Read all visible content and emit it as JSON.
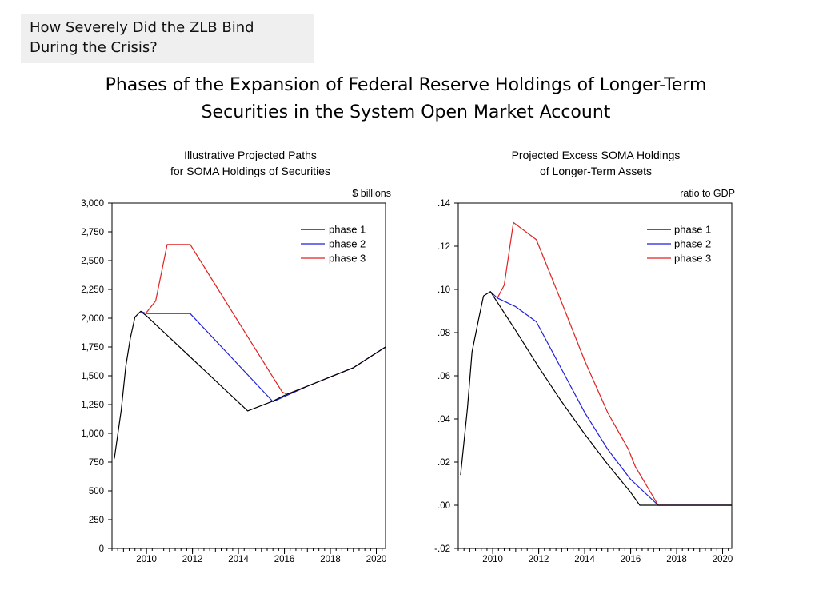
{
  "header": {
    "section_line1": "How Severely Did the ZLB Bind",
    "section_line2": "During the Crisis?"
  },
  "slide": {
    "title_line1": "Phases of the Expansion of Federal Reserve Holdings of Longer-Term",
    "title_line2": "Securities in the System Open Market Account"
  },
  "chart_data": [
    {
      "type": "line",
      "title_lines": [
        "Illustrative Projected Paths",
        "for SOMA Holdings of Securities"
      ],
      "unit_label": "$ billions",
      "xlim": [
        2008.5,
        2020.4
      ],
      "ylim": [
        0,
        3000
      ],
      "yticks": [
        {
          "v": 0,
          "label": "0"
        },
        {
          "v": 250,
          "label": "250"
        },
        {
          "v": 500,
          "label": "500"
        },
        {
          "v": 750,
          "label": "750"
        },
        {
          "v": 1000,
          "label": "1,000"
        },
        {
          "v": 1250,
          "label": "1,250"
        },
        {
          "v": 1500,
          "label": "1,500"
        },
        {
          "v": 1750,
          "label": "1,750"
        },
        {
          "v": 2000,
          "label": "2,000"
        },
        {
          "v": 2250,
          "label": "2,250"
        },
        {
          "v": 2500,
          "label": "2,500"
        },
        {
          "v": 2750,
          "label": "2,750"
        },
        {
          "v": 3000,
          "label": "3,000"
        }
      ],
      "xticks": [
        {
          "v": 2010,
          "label": "2010"
        },
        {
          "v": 2012,
          "label": "2012"
        },
        {
          "v": 2014,
          "label": "2014"
        },
        {
          "v": 2016,
          "label": "2016"
        },
        {
          "v": 2018,
          "label": "2018"
        },
        {
          "v": 2020,
          "label": "2020"
        }
      ],
      "grid": false,
      "legend_position": "top-right",
      "series": [
        {
          "name": "phase 1",
          "color": "#000000",
          "points": [
            [
              2008.6,
              780
            ],
            [
              2008.9,
              1200
            ],
            [
              2009.1,
              1580
            ],
            [
              2009.3,
              1830
            ],
            [
              2009.5,
              2010
            ],
            [
              2009.75,
              2060
            ],
            [
              2010.0,
              2020
            ],
            [
              2014.4,
              1195
            ],
            [
              2015.5,
              1280
            ],
            [
              2016.0,
              1330
            ],
            [
              2017.0,
              1410
            ],
            [
              2018.0,
              1490
            ],
            [
              2019.0,
              1570
            ],
            [
              2020.4,
              1750
            ]
          ]
        },
        {
          "name": "phase 2",
          "color": "#1f1fdd",
          "points": [
            [
              2009.75,
              2060
            ],
            [
              2010.0,
              2040
            ],
            [
              2011.9,
              2040
            ],
            [
              2015.5,
              1275
            ],
            [
              2016.0,
              1320
            ],
            [
              2017.0,
              1410
            ],
            [
              2018.0,
              1490
            ],
            [
              2019.0,
              1570
            ],
            [
              2020.4,
              1750
            ]
          ]
        },
        {
          "name": "phase 3",
          "color": "#e02020",
          "points": [
            [
              2010.0,
              2050
            ],
            [
              2010.4,
              2150
            ],
            [
              2010.9,
              2640
            ],
            [
              2011.9,
              2640
            ],
            [
              2015.9,
              1360
            ],
            [
              2016.1,
              1340
            ],
            [
              2017.0,
              1410
            ],
            [
              2018.0,
              1490
            ],
            [
              2019.0,
              1570
            ],
            [
              2020.4,
              1750
            ]
          ]
        }
      ]
    },
    {
      "type": "line",
      "title_lines": [
        "Projected Excess SOMA Holdings",
        "of Longer-Term Assets"
      ],
      "unit_label": "ratio to GDP",
      "xlim": [
        2008.5,
        2020.4
      ],
      "ylim": [
        -0.02,
        0.14
      ],
      "yticks": [
        {
          "v": -0.02,
          "label": "-.02"
        },
        {
          "v": 0,
          "label": ".00"
        },
        {
          "v": 0.02,
          "label": ".02"
        },
        {
          "v": 0.04,
          "label": ".04"
        },
        {
          "v": 0.06,
          "label": ".06"
        },
        {
          "v": 0.08,
          "label": ".08"
        },
        {
          "v": 0.1,
          "label": ".10"
        },
        {
          "v": 0.12,
          "label": ".12"
        },
        {
          "v": 0.14,
          "label": ".14"
        }
      ],
      "xticks": [
        {
          "v": 2010,
          "label": "2010"
        },
        {
          "v": 2012,
          "label": "2012"
        },
        {
          "v": 2014,
          "label": "2014"
        },
        {
          "v": 2016,
          "label": "2016"
        },
        {
          "v": 2018,
          "label": "2018"
        },
        {
          "v": 2020,
          "label": "2020"
        }
      ],
      "grid": false,
      "legend_position": "top-right",
      "series": [
        {
          "name": "phase 1",
          "color": "#000000",
          "points": [
            [
              2008.6,
              0.014
            ],
            [
              2008.9,
              0.045
            ],
            [
              2009.1,
              0.071
            ],
            [
              2009.4,
              0.087
            ],
            [
              2009.6,
              0.097
            ],
            [
              2009.9,
              0.099
            ],
            [
              2011.0,
              0.081
            ],
            [
              2012.0,
              0.064
            ],
            [
              2013.0,
              0.048
            ],
            [
              2014.0,
              0.033
            ],
            [
              2015.0,
              0.019
            ],
            [
              2016.0,
              0.006
            ],
            [
              2016.4,
              0.0
            ],
            [
              2020.4,
              0.0
            ]
          ]
        },
        {
          "name": "phase 2",
          "color": "#1f1fdd",
          "points": [
            [
              2009.9,
              0.099
            ],
            [
              2010.2,
              0.096
            ],
            [
              2011.0,
              0.092
            ],
            [
              2011.9,
              0.085
            ],
            [
              2013.0,
              0.063
            ],
            [
              2014.0,
              0.043
            ],
            [
              2015.0,
              0.026
            ],
            [
              2016.0,
              0.012
            ],
            [
              2017.2,
              0.0
            ],
            [
              2020.4,
              0.0
            ]
          ]
        },
        {
          "name": "phase 3",
          "color": "#e02020",
          "points": [
            [
              2010.2,
              0.096
            ],
            [
              2010.5,
              0.102
            ],
            [
              2010.9,
              0.131
            ],
            [
              2011.9,
              0.123
            ],
            [
              2013.0,
              0.094
            ],
            [
              2014.0,
              0.067
            ],
            [
              2015.0,
              0.043
            ],
            [
              2015.9,
              0.026
            ],
            [
              2016.2,
              0.018
            ],
            [
              2017.2,
              0.0
            ],
            [
              2020.4,
              0.0
            ]
          ]
        }
      ]
    }
  ]
}
